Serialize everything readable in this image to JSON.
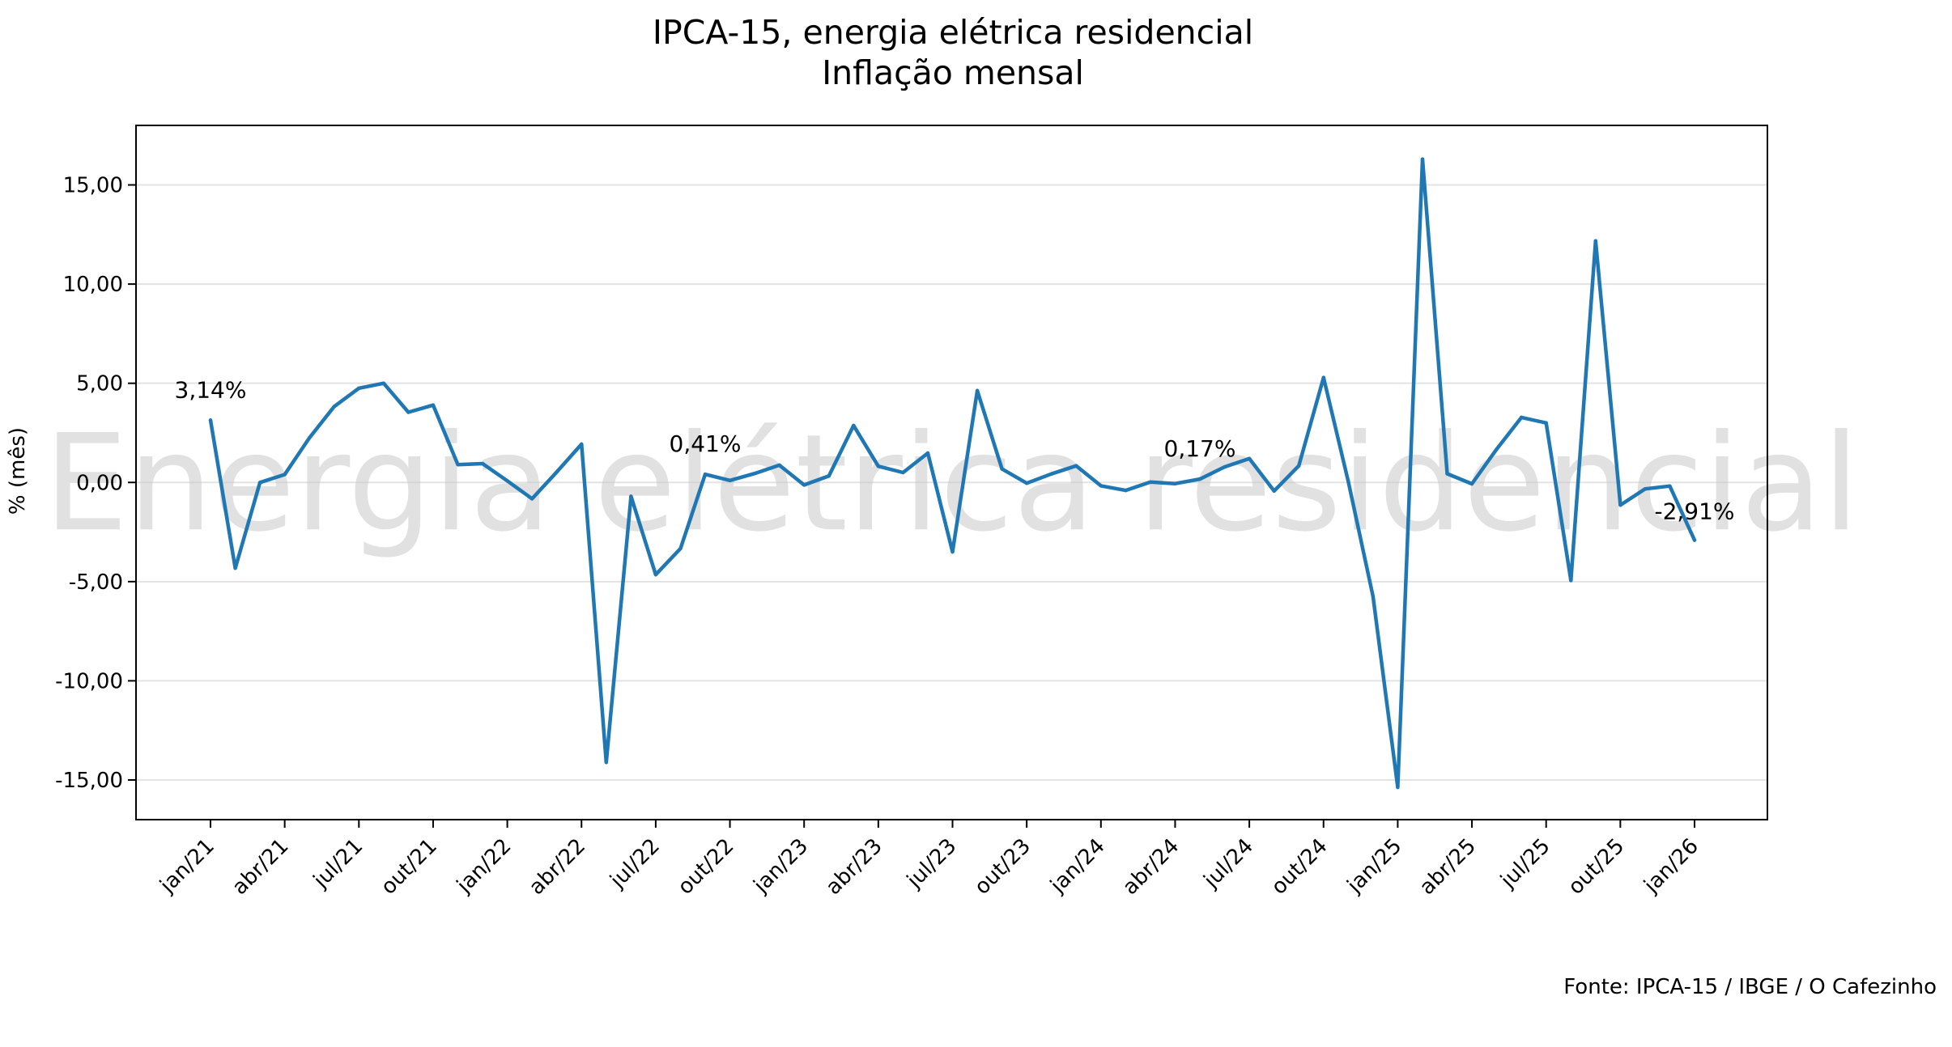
{
  "chart_data": {
    "type": "line",
    "title": "IPCA-15, energia elétrica residencial",
    "subtitle": "Inflação mensal",
    "xlabel": "",
    "ylabel": "% (mês)",
    "ylim": [
      -17,
      18
    ],
    "yticks": [
      -15,
      -10,
      -5,
      0,
      5,
      10,
      15
    ],
    "ytick_labels": [
      "-15,00",
      "-10,00",
      "-5,00",
      "0,00",
      "5,00",
      "10,00",
      "15,00"
    ],
    "grid": "horizontal",
    "watermark": "Energia elétrica residencial",
    "source": "Fonte: IPCA-15 / IBGE / O Cafezinho",
    "line_color": "#1f77b4",
    "xtick_labels": [
      "jan/21",
      "abr/21",
      "jul/21",
      "out/21",
      "jan/22",
      "abr/22",
      "jul/22",
      "out/22",
      "jan/23",
      "abr/23",
      "jul/23",
      "out/23",
      "jan/24",
      "abr/24",
      "jul/24",
      "out/24",
      "jan/25",
      "abr/25",
      "jul/25",
      "out/25",
      "jan/26"
    ],
    "xtick_step_months": 3,
    "x": [
      "jan/21",
      "fev/21",
      "mar/21",
      "abr/21",
      "mai/21",
      "jun/21",
      "jul/21",
      "ago/21",
      "set/21",
      "out/21",
      "nov/21",
      "dez/21",
      "jan/22",
      "fev/22",
      "mar/22",
      "abr/22",
      "mai/22",
      "jun/22",
      "jul/22",
      "ago/22",
      "set/22",
      "out/22",
      "nov/22",
      "dez/22",
      "jan/23",
      "fev/23",
      "mar/23",
      "abr/23",
      "mai/23",
      "jun/23",
      "jul/23",
      "ago/23",
      "set/23",
      "out/23",
      "nov/23",
      "dez/23",
      "jan/24",
      "fev/24",
      "mar/24",
      "abr/24",
      "mai/24",
      "jun/24",
      "jul/24",
      "ago/24",
      "set/24",
      "out/24",
      "nov/24",
      "dez/24",
      "jan/25",
      "fev/25",
      "mar/25",
      "abr/25",
      "mai/25",
      "jun/25",
      "jul/25",
      "ago/25",
      "set/25",
      "out/25",
      "nov/25",
      "dez/25",
      "jan/26"
    ],
    "series": [
      {
        "name": "Energia elétrica residencial",
        "values": [
          3.14,
          -4.32,
          0.0,
          0.4,
          2.25,
          3.83,
          4.75,
          5.0,
          3.54,
          3.9,
          0.9,
          0.95,
          0.08,
          -0.82,
          0.53,
          1.93,
          -14.11,
          -0.7,
          -4.65,
          -3.33,
          0.41,
          0.1,
          0.45,
          0.87,
          -0.13,
          0.33,
          2.87,
          0.82,
          0.5,
          1.48,
          -3.5,
          4.63,
          0.68,
          -0.04,
          0.43,
          0.84,
          -0.17,
          -0.4,
          0.02,
          -0.06,
          0.17,
          0.78,
          1.2,
          -0.43,
          0.84,
          5.29,
          0.05,
          -5.75,
          -15.37,
          16.3,
          0.44,
          -0.07,
          1.68,
          3.28,
          3.0,
          -4.94,
          12.18,
          -1.14,
          -0.33,
          -0.18,
          -2.91
        ]
      }
    ],
    "annotations": [
      {
        "index": 0,
        "text": "3,14%"
      },
      {
        "index": 20,
        "text": "0,41%"
      },
      {
        "index": 40,
        "text": "0,17%"
      },
      {
        "index": 60,
        "text": "-2,91%"
      }
    ]
  }
}
